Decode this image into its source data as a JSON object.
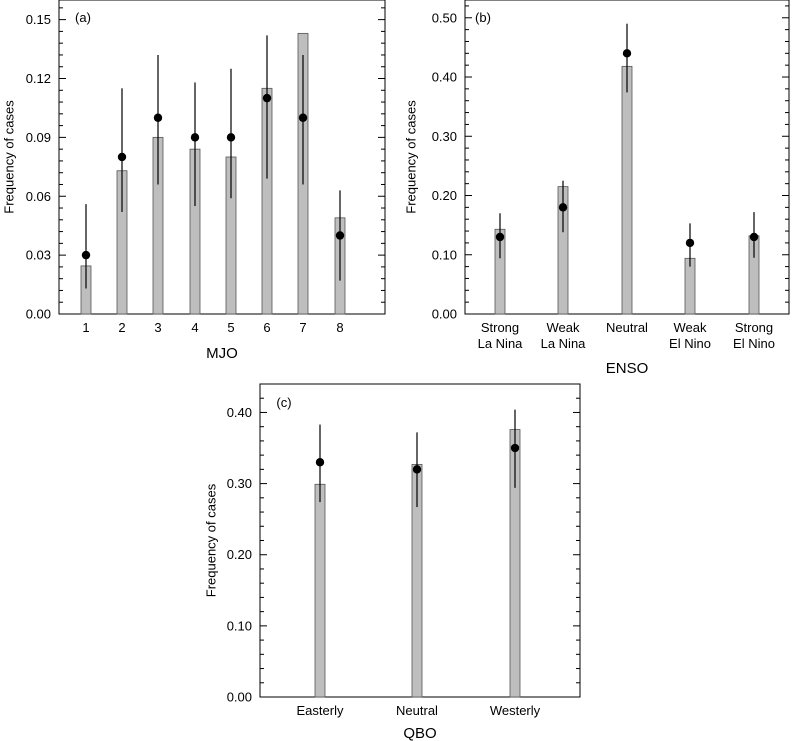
{
  "chart_data": [
    {
      "type": "bar",
      "panel_label": "(a)",
      "xlabel": "MJO",
      "ylabel": "Frequency of cases",
      "ylim": [
        0,
        0.16
      ],
      "yticks": [
        0.0,
        0.03,
        0.06,
        0.09,
        0.12,
        0.15
      ],
      "ytick_labels": [
        "0.00",
        "0.03",
        "0.06",
        "0.09",
        "0.12",
        "0.15"
      ],
      "categories": [
        "1",
        "2",
        "3",
        "4",
        "5",
        "6",
        "7",
        "8"
      ],
      "bar_values": [
        0.0245,
        0.073,
        0.09,
        0.084,
        0.08,
        0.115,
        0.143,
        0.049
      ],
      "point_values": [
        0.03,
        0.08,
        0.1,
        0.09,
        0.09,
        0.11,
        0.1,
        0.04
      ],
      "error_low": [
        0.013,
        0.052,
        0.066,
        0.055,
        0.059,
        0.069,
        0.066,
        0.017
      ],
      "error_high": [
        0.056,
        0.115,
        0.132,
        0.118,
        0.125,
        0.142,
        0.132,
        0.063
      ]
    },
    {
      "type": "bar",
      "panel_label": "(b)",
      "xlabel": "ENSO",
      "ylabel": "Frequency of cases",
      "ylim": [
        0,
        0.53
      ],
      "yticks": [
        0.0,
        0.1,
        0.2,
        0.3,
        0.4,
        0.5
      ],
      "ytick_labels": [
        "0.00",
        "0.10",
        "0.20",
        "0.30",
        "0.40",
        "0.50"
      ],
      "categories": [
        [
          "Strong",
          "La Nina"
        ],
        [
          "Weak",
          "La Nina"
        ],
        [
          "Neutral"
        ],
        [
          "Weak",
          "El Nino"
        ],
        [
          "Strong",
          "El Nino"
        ]
      ],
      "bar_values": [
        0.143,
        0.215,
        0.418,
        0.094,
        0.132
      ],
      "point_values": [
        0.13,
        0.18,
        0.44,
        0.12,
        0.13
      ],
      "error_low": [
        0.094,
        0.138,
        0.374,
        0.08,
        0.095
      ],
      "error_high": [
        0.17,
        0.225,
        0.49,
        0.153,
        0.172
      ]
    },
    {
      "type": "bar",
      "panel_label": "(c)",
      "xlabel": "QBO",
      "ylabel": "Frequency of cases",
      "ylim": [
        0,
        0.44
      ],
      "yticks": [
        0.0,
        0.1,
        0.2,
        0.3,
        0.4
      ],
      "ytick_labels": [
        "0.00",
        "0.10",
        "0.20",
        "0.30",
        "0.40"
      ],
      "categories": [
        "Easterly",
        "Neutral",
        "Westerly"
      ],
      "bar_values": [
        0.299,
        0.327,
        0.376
      ],
      "point_values": [
        0.33,
        0.32,
        0.35
      ],
      "error_low": [
        0.274,
        0.267,
        0.294
      ],
      "error_high": [
        0.383,
        0.372,
        0.404
      ]
    }
  ],
  "colors": {
    "bar_fill": "#bebebe",
    "bar_stroke": "#555555",
    "point": "#000000",
    "axis": "#000000"
  }
}
